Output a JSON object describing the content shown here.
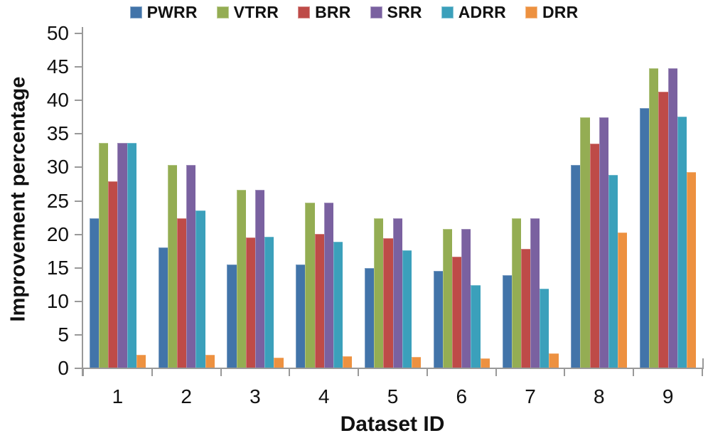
{
  "chart_data": {
    "type": "bar",
    "title": "",
    "xlabel": "Dataset ID",
    "ylabel": "Improvement percentage",
    "ylim": [
      0,
      50
    ],
    "ytick_step": 5,
    "yticks": [
      0,
      5,
      10,
      15,
      20,
      25,
      30,
      35,
      40,
      45,
      50
    ],
    "grid": false,
    "legend_position": "top",
    "categories": [
      "1",
      "2",
      "3",
      "4",
      "5",
      "6",
      "7",
      "8",
      "9"
    ],
    "series": [
      {
        "name": "PWRR",
        "color": "#4274A9",
        "values": [
          22.4,
          18.1,
          15.5,
          15.5,
          15.0,
          14.5,
          13.9,
          30.4,
          38.9
        ]
      },
      {
        "name": "VTRR",
        "color": "#94AD53",
        "values": [
          33.7,
          30.4,
          26.7,
          24.7,
          22.4,
          20.8,
          22.4,
          37.5,
          44.8
        ]
      },
      {
        "name": "BRR",
        "color": "#BE4B48",
        "values": [
          27.9,
          22.4,
          19.5,
          20.1,
          19.4,
          16.7,
          17.8,
          33.5,
          41.3
        ]
      },
      {
        "name": "SRR",
        "color": "#7A61A0",
        "values": [
          33.7,
          30.4,
          26.7,
          24.7,
          22.4,
          20.8,
          22.4,
          37.5,
          44.8
        ]
      },
      {
        "name": "ADRR",
        "color": "#3BA0BB",
        "values": [
          33.7,
          23.6,
          19.6,
          18.9,
          17.6,
          12.4,
          11.9,
          28.9,
          37.6
        ]
      },
      {
        "name": "DRR",
        "color": "#ED9140",
        "values": [
          2.0,
          2.0,
          1.6,
          1.8,
          1.7,
          1.5,
          2.2,
          20.3,
          29.3
        ]
      }
    ],
    "axis_color": "#999999",
    "text_color": "#111111"
  }
}
